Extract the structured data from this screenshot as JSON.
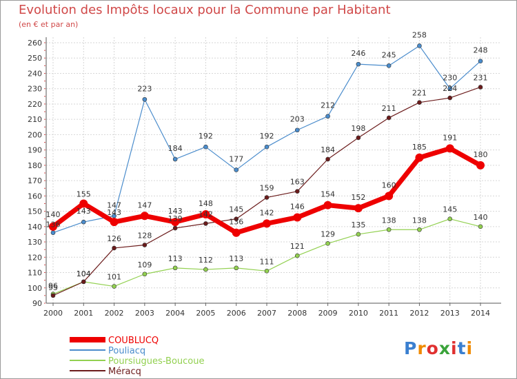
{
  "chart_data": {
    "type": "line",
    "title": "Evolution des Impôts locaux pour la Commune par Habitant",
    "subtitle": "(en € et par an)",
    "xlabel": "",
    "ylabel": "",
    "categories": [
      "2000",
      "2001",
      "2002",
      "2003",
      "2004",
      "2005",
      "2006",
      "2007",
      "2008",
      "2009",
      "2010",
      "2011",
      "2012",
      "2013",
      "2014"
    ],
    "ylim": [
      90,
      260
    ],
    "yticks": [
      90,
      100,
      110,
      120,
      130,
      140,
      150,
      160,
      170,
      180,
      190,
      200,
      210,
      220,
      230,
      240,
      250,
      260
    ],
    "grid": true,
    "legend_position": "bottom-left",
    "series": [
      {
        "name": "COUBLUCQ",
        "color": "#ee0000",
        "values": [
          140,
          155,
          143,
          147,
          143,
          148,
          136,
          142,
          146,
          154,
          152,
          160,
          185,
          191,
          180
        ]
      },
      {
        "name": "Pouliacq",
        "color": "#4a8ccc",
        "values": [
          136,
          143,
          147,
          223,
          184,
          192,
          177,
          192,
          203,
          212,
          246,
          245,
          258,
          230,
          248
        ]
      },
      {
        "name": "Poursiugues-Boucoue",
        "color": "#92d050",
        "values": [
          96,
          104,
          101,
          109,
          113,
          112,
          113,
          111,
          121,
          129,
          135,
          138,
          138,
          145,
          140
        ]
      },
      {
        "name": "Méracq",
        "color": "#6b1b1b",
        "values": [
          95,
          104,
          126,
          128,
          139,
          142,
          145,
          159,
          163,
          184,
          198,
          211,
          221,
          224,
          231
        ]
      }
    ],
    "data_labels": [
      [
        140,
        155,
        143,
        147,
        143,
        148,
        136,
        142,
        146,
        154,
        152,
        160,
        185,
        191,
        180
      ],
      [
        136,
        143,
        147,
        223,
        184,
        192,
        177,
        192,
        203,
        212,
        246,
        245,
        258,
        230,
        248
      ],
      [
        96,
        104,
        101,
        109,
        113,
        112,
        113,
        111,
        121,
        129,
        135,
        138,
        138,
        145,
        140
      ],
      [
        95,
        104,
        126,
        128,
        139,
        142,
        145,
        159,
        163,
        184,
        198,
        211,
        221,
        224,
        231
      ]
    ]
  },
  "logo": {
    "text": "Proxiti",
    "colors": [
      "#3a7fd0",
      "#f08a00",
      "#e03030",
      "#3aa33a",
      "#e03030",
      "#3a7fd0",
      "#f08a00"
    ]
  }
}
